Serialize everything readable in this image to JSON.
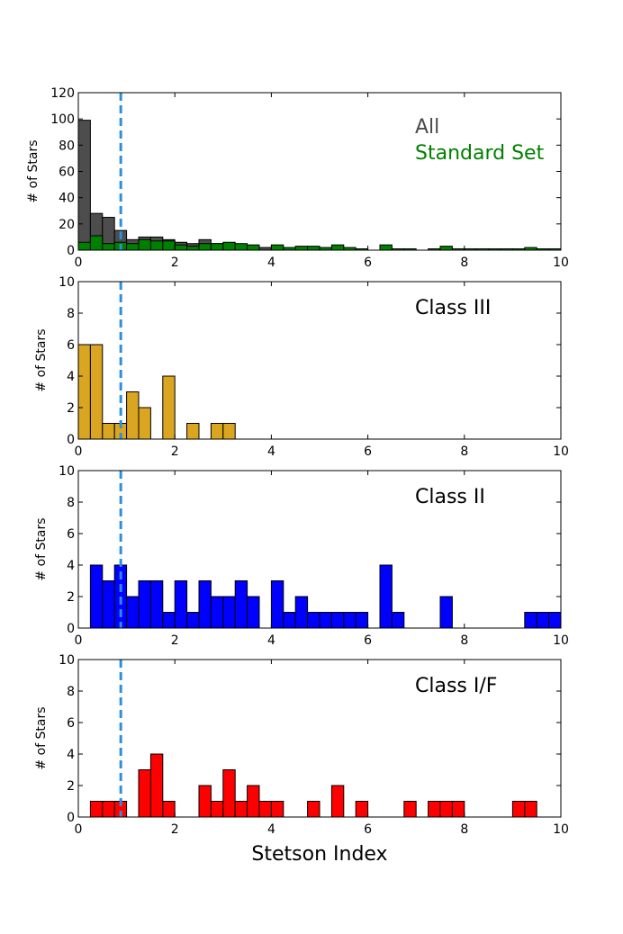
{
  "chart_data": {
    "type": "histogram",
    "xlabel": "Stetson Index",
    "ylabel": "# of Stars",
    "xlim": [
      0,
      10
    ],
    "xticks": [
      0,
      2,
      4,
      6,
      8,
      10
    ],
    "bin_width": 0.25,
    "reference_line": {
      "x": 0.88,
      "style": "dashed",
      "color": "#2a8fe0"
    },
    "panels": [
      {
        "id": "all",
        "ylim": [
          0,
          120
        ],
        "yticks": [
          0,
          20,
          40,
          60,
          80,
          100,
          120
        ],
        "legend": [
          {
            "label": "All",
            "color": "#4a4a4a"
          },
          {
            "label": "Standard Set",
            "color": "#008000"
          }
        ],
        "series": [
          {
            "name": "All",
            "color": "#4d4d4d",
            "bins": [
              [
                0,
                99
              ],
              [
                0.25,
                28
              ],
              [
                0.5,
                25
              ],
              [
                0.75,
                15
              ],
              [
                1.0,
                8
              ],
              [
                1.25,
                10
              ],
              [
                1.5,
                10
              ],
              [
                1.75,
                8
              ],
              [
                2.0,
                6
              ],
              [
                2.25,
                5
              ],
              [
                2.5,
                8
              ],
              [
                2.75,
                5
              ],
              [
                3.0,
                5
              ],
              [
                3.25,
                4
              ],
              [
                3.5,
                3
              ],
              [
                3.75,
                2
              ]
            ]
          },
          {
            "name": "Standard Set",
            "color": "#008000",
            "bins": [
              [
                0,
                6
              ],
              [
                0.25,
                11
              ],
              [
                0.5,
                5
              ],
              [
                0.75,
                6
              ],
              [
                1.0,
                5
              ],
              [
                1.25,
                8
              ],
              [
                1.5,
                7
              ],
              [
                1.75,
                7
              ],
              [
                2.0,
                4
              ],
              [
                2.25,
                3
              ],
              [
                2.5,
                5
              ],
              [
                2.75,
                5
              ],
              [
                3.0,
                6
              ],
              [
                3.25,
                5
              ],
              [
                3.5,
                4
              ],
              [
                4.0,
                4
              ],
              [
                4.25,
                2
              ],
              [
                4.5,
                3
              ],
              [
                4.75,
                3
              ],
              [
                5.0,
                2
              ],
              [
                5.25,
                4
              ],
              [
                5.5,
                2
              ],
              [
                5.75,
                1
              ],
              [
                6.25,
                4
              ],
              [
                6.5,
                1
              ],
              [
                6.75,
                1
              ],
              [
                7.25,
                1
              ],
              [
                7.5,
                3
              ],
              [
                7.75,
                1
              ],
              [
                8.0,
                1
              ],
              [
                8.25,
                1
              ],
              [
                8.5,
                1
              ],
              [
                8.75,
                1
              ],
              [
                9.0,
                1
              ],
              [
                9.25,
                2
              ],
              [
                9.5,
                1
              ],
              [
                9.75,
                1
              ]
            ]
          }
        ]
      },
      {
        "id": "class-iii",
        "ylim": [
          0,
          10
        ],
        "yticks": [
          0,
          2,
          4,
          6,
          8,
          10
        ],
        "legend": [
          {
            "label": "Class III",
            "color": "#000000"
          }
        ],
        "series": [
          {
            "name": "Class III",
            "color": "#daa520",
            "bins": [
              [
                0,
                6
              ],
              [
                0.25,
                6
              ],
              [
                0.5,
                1
              ],
              [
                0.75,
                1
              ],
              [
                1.0,
                3
              ],
              [
                1.25,
                2
              ],
              [
                1.75,
                4
              ],
              [
                2.25,
                1
              ],
              [
                2.75,
                1
              ],
              [
                3.0,
                1
              ]
            ]
          }
        ]
      },
      {
        "id": "class-ii",
        "ylim": [
          0,
          10
        ],
        "yticks": [
          0,
          2,
          4,
          6,
          8,
          10
        ],
        "legend": [
          {
            "label": "Class II",
            "color": "#000000"
          }
        ],
        "series": [
          {
            "name": "Class II",
            "color": "#0000ff",
            "bins": [
              [
                0.25,
                4
              ],
              [
                0.5,
                3
              ],
              [
                0.75,
                4
              ],
              [
                1.0,
                2
              ],
              [
                1.25,
                3
              ],
              [
                1.5,
                3
              ],
              [
                1.75,
                1
              ],
              [
                2.0,
                3
              ],
              [
                2.25,
                1
              ],
              [
                2.5,
                3
              ],
              [
                2.75,
                2
              ],
              [
                3.0,
                2
              ],
              [
                3.25,
                3
              ],
              [
                3.5,
                2
              ],
              [
                4.0,
                3
              ],
              [
                4.25,
                1
              ],
              [
                4.5,
                2
              ],
              [
                4.75,
                1
              ],
              [
                5.0,
                1
              ],
              [
                5.25,
                1
              ],
              [
                5.5,
                1
              ],
              [
                5.75,
                1
              ],
              [
                6.25,
                4
              ],
              [
                6.5,
                1
              ],
              [
                7.5,
                2
              ],
              [
                9.25,
                1
              ],
              [
                9.5,
                1
              ],
              [
                9.75,
                1
              ]
            ]
          }
        ]
      },
      {
        "id": "class-i-f",
        "ylim": [
          0,
          10
        ],
        "yticks": [
          0,
          2,
          4,
          6,
          8,
          10
        ],
        "legend": [
          {
            "label": "Class I/F",
            "color": "#000000"
          }
        ],
        "series": [
          {
            "name": "Class I/F",
            "color": "#ff0000",
            "bins": [
              [
                0.25,
                1
              ],
              [
                0.5,
                1
              ],
              [
                0.75,
                1
              ],
              [
                1.25,
                3
              ],
              [
                1.5,
                4
              ],
              [
                1.75,
                1
              ],
              [
                2.5,
                2
              ],
              [
                2.75,
                1
              ],
              [
                3.0,
                3
              ],
              [
                3.25,
                1
              ],
              [
                3.5,
                2
              ],
              [
                3.75,
                1
              ],
              [
                4.0,
                1
              ],
              [
                4.75,
                1
              ],
              [
                5.25,
                2
              ],
              [
                5.75,
                1
              ],
              [
                6.75,
                1
              ],
              [
                7.25,
                1
              ],
              [
                7.5,
                1
              ],
              [
                7.75,
                1
              ],
              [
                9.0,
                1
              ],
              [
                9.25,
                1
              ]
            ]
          }
        ]
      }
    ]
  }
}
